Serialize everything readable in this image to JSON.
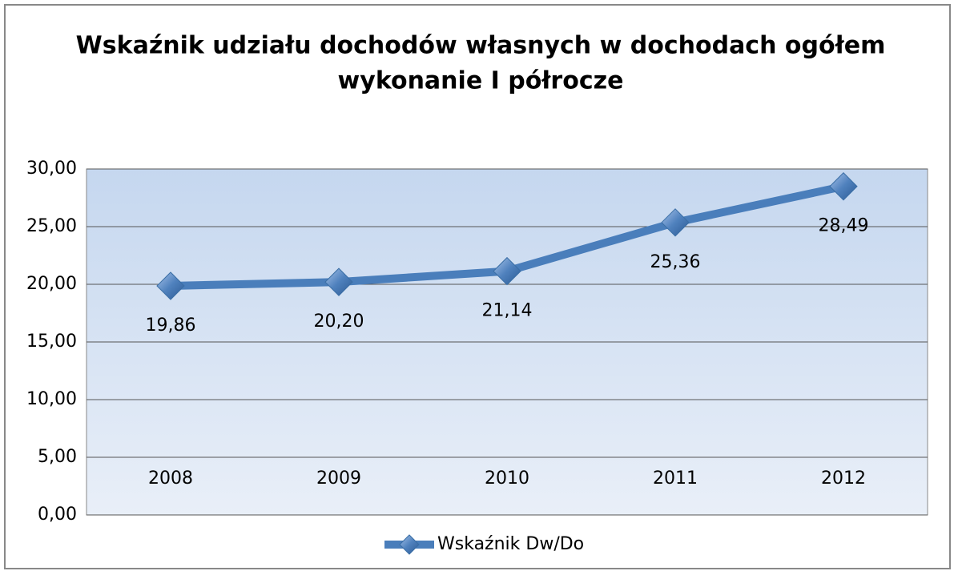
{
  "chart_data": {
    "type": "line",
    "title": "Wskaźnik udziału dochodów własnych w dochodach ogółem",
    "subtitle": "wykonanie I półrocze",
    "categories": [
      "2008",
      "2009",
      "2010",
      "2011",
      "2012"
    ],
    "series": [
      {
        "name": "Wskaźnik Dw/Do",
        "color": "#4a7ebb",
        "values": [
          19.86,
          20.2,
          21.14,
          25.36,
          28.49
        ],
        "value_labels": [
          "19,86",
          "20,20",
          "21,14",
          "25,36",
          "28,49"
        ]
      }
    ],
    "ylim": [
      0,
      30
    ],
    "yticks": [
      {
        "value": 0,
        "label": "0,00"
      },
      {
        "value": 5,
        "label": "5,00"
      },
      {
        "value": 10,
        "label": "10,00"
      },
      {
        "value": 15,
        "label": "15,00"
      },
      {
        "value": 20,
        "label": "20,00"
      },
      {
        "value": 25,
        "label": "25,00"
      },
      {
        "value": 30,
        "label": "30,00"
      }
    ],
    "grid": true,
    "legend": "bottom"
  }
}
